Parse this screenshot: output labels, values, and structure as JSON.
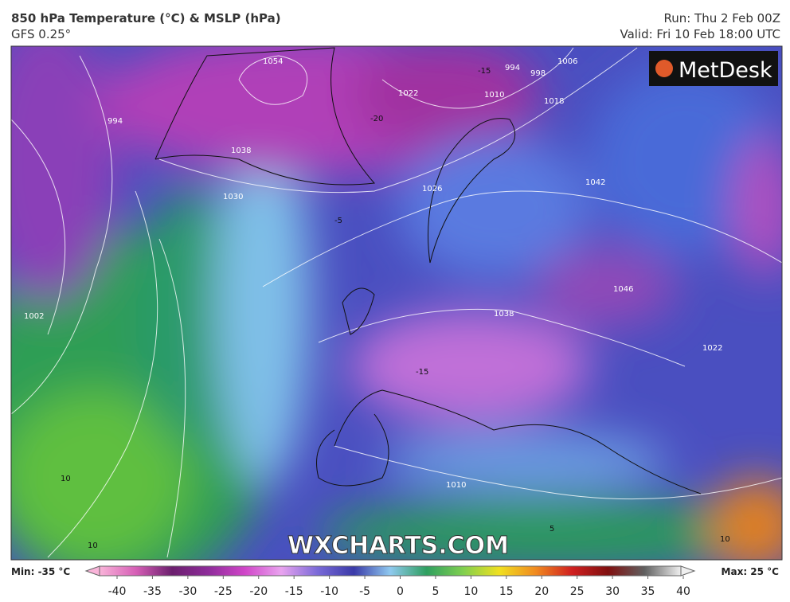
{
  "header": {
    "title": "850 hPa Temperature (°C) & MSLP (hPa)",
    "subtitle": "GFS 0.25°",
    "run": "Run: Thu 2 Feb 00Z",
    "valid": "Valid: Fri 10 Feb 18:00 UTC"
  },
  "logo": "MetDesk",
  "watermark": "WXCHARTS.COM",
  "map_labels": [
    "1054",
    "1038",
    "1030",
    "1022",
    "1010",
    "994",
    "998",
    "1006",
    "1018",
    "1026",
    "1042",
    "1046",
    "1038",
    "1022",
    "1010",
    "994",
    "1002",
    "-15",
    "-20",
    "-15",
    "-5",
    "10",
    "10",
    "10",
    "5"
  ],
  "colorbar": {
    "min_label": "Min: -35 °C",
    "max_label": "Max: 25 °C",
    "ticks": [
      -40,
      -35,
      -30,
      -25,
      -20,
      -15,
      -10,
      -5,
      0,
      5,
      10,
      15,
      20,
      25,
      30,
      35,
      40
    ]
  }
}
